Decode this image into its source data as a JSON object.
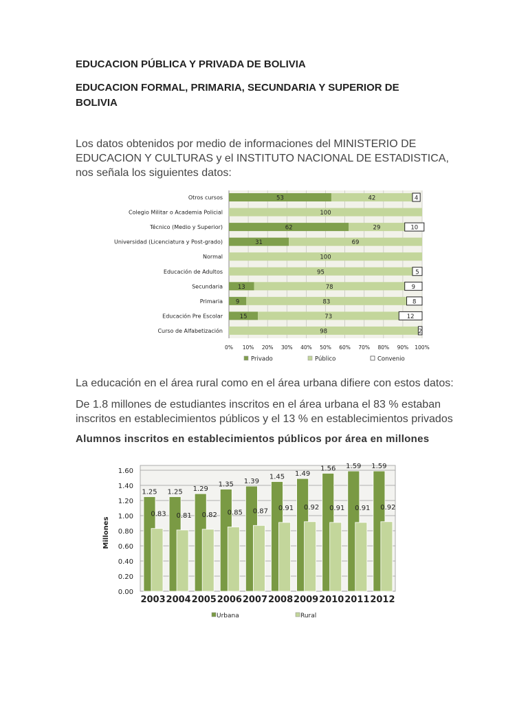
{
  "title": "EDUCACION PÚBLICA Y PRIVADA DE BOLIVIA",
  "subtitle": "EDUCACION FORMAL, PRIMARIA, SECUNDARIA Y SUPERIOR DE BOLIVIA",
  "intro": "Los datos obtenidos por medio de informaciones del MINISTERIO DE EDUCACION Y CULTURAS y el INSTITUTO NACIONAL DE ESTADISTICA, nos señala los siguientes datos:",
  "para1": "La educación en el área rural como en el área urbana difiere con estos datos:",
  "para2": "De 1.8 millones de estudiantes inscritos en el área urbana el 83 % estaban inscritos en establecimientos públicos y el 13 % en establecimientos privados",
  "chart2_heading": "Alumnos inscritos en establecimientos públicos por área en millones",
  "chart_data": [
    {
      "type": "bar",
      "orientation": "horizontal",
      "stacked": "percent",
      "categories": [
        "Otros cursos",
        "Colegio Militar o Academia Policial",
        "Técnico (Medio y Superior)",
        "Universidad (Licenciatura y Post-grado)",
        "Normal",
        "Educación de Adultos",
        "Secundaria",
        "Primaria",
        "Educación Pre Escolar",
        "Curso de Alfabetización"
      ],
      "series": [
        {
          "name": "Privado",
          "color": "#7f9f4c",
          "values": [
            53,
            0,
            62,
            31,
            0,
            0,
            13,
            9,
            15,
            0
          ]
        },
        {
          "name": "Público",
          "color": "#c3d69b",
          "values": [
            42,
            100,
            29,
            69,
            100,
            95,
            78,
            83,
            73,
            98
          ]
        },
        {
          "name": "Convenio",
          "color": "#ffffff",
          "values": [
            4,
            0,
            10,
            0,
            0,
            5,
            9,
            8,
            12,
            2
          ]
        }
      ],
      "xticks": [
        "0%",
        "10%",
        "20%",
        "30%",
        "40%",
        "50%",
        "60%",
        "70%",
        "80%",
        "90%",
        "100%"
      ],
      "xlim": [
        0,
        100
      ],
      "grid": true,
      "legend": "bottom"
    },
    {
      "type": "bar",
      "categories": [
        "2003",
        "2004",
        "2005",
        "2006",
        "2007",
        "2008",
        "2009",
        "2010",
        "2011",
        "2012"
      ],
      "series": [
        {
          "name": "Urbana",
          "color": "#7a9a44",
          "values": [
            1.25,
            1.25,
            1.29,
            1.35,
            1.39,
            1.45,
            1.49,
            1.56,
            1.59,
            1.59
          ]
        },
        {
          "name": "Rural",
          "color": "#c3d69b",
          "values": [
            0.83,
            0.81,
            0.82,
            0.85,
            0.87,
            0.91,
            0.92,
            0.91,
            0.91,
            0.92
          ]
        }
      ],
      "ylabel": "Millones",
      "yticks": [
        "0.00",
        "0.20",
        "0.40",
        "0.60",
        "0.80",
        "1.00",
        "1.20",
        "1.40",
        "1.60"
      ],
      "ylim": [
        0,
        1.6
      ],
      "grid": true,
      "legend": "bottom"
    }
  ]
}
